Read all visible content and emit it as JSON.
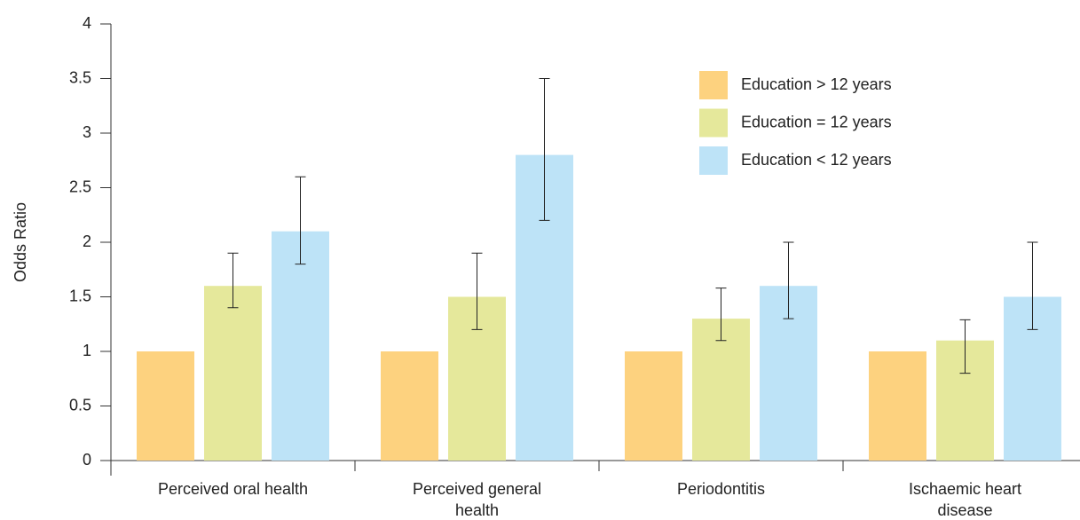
{
  "chart_data": {
    "type": "bar",
    "y_label": "Odds Ratio",
    "categories": [
      "Perceived oral health",
      "Perceived general health",
      "Periodontitis",
      "Ischaemic heart disease"
    ],
    "series": [
      {
        "name": "Education > 12 years",
        "color": "#fdd27f",
        "values": [
          1,
          1,
          1,
          1
        ]
      },
      {
        "name": "Education = 12 years",
        "color": "#e5e89b",
        "values": [
          1.6,
          1.5,
          1.3,
          1.1
        ],
        "lower": [
          1.4,
          1.2,
          1.1,
          0.8
        ],
        "upper": [
          1.9,
          1.9,
          1.58,
          1.29
        ]
      },
      {
        "name": "Education < 12 years",
        "color": "#bde3f7",
        "values": [
          2.1,
          2.8,
          1.6,
          1.5
        ],
        "lower": [
          1.8,
          2.2,
          1.3,
          1.2
        ],
        "upper": [
          2.6,
          3.5,
          2.0,
          2.0
        ]
      }
    ],
    "ylim": [
      0,
      4
    ],
    "yticks": [
      0,
      0.5,
      1,
      1.5,
      2,
      2.5,
      3,
      3.5,
      4
    ],
    "grid": false
  }
}
